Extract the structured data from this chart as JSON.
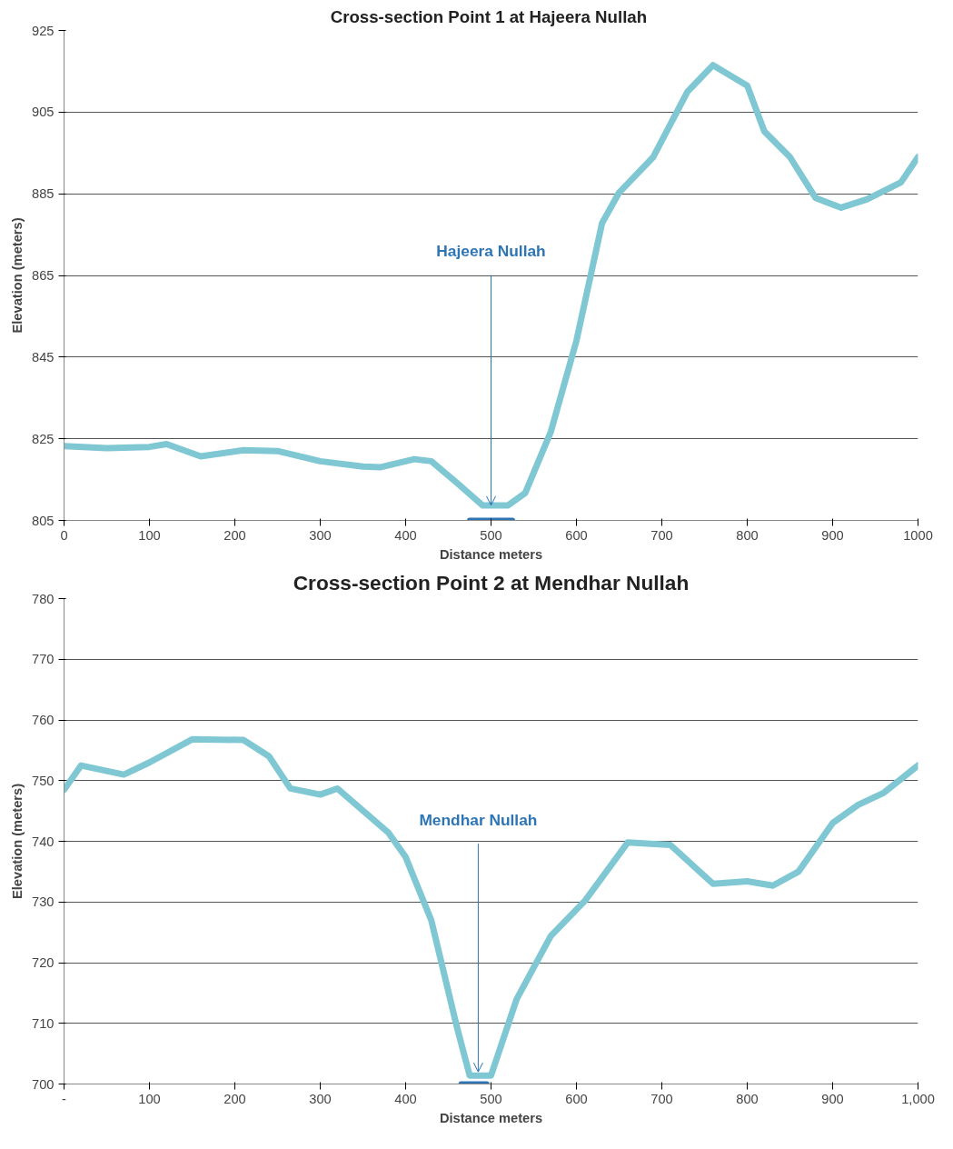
{
  "chart_data": [
    {
      "type": "line",
      "title": "Cross-section  Point 1 at Hajeera Nullah",
      "xlabel": "Distance meters",
      "ylabel": "Elevation (meters)",
      "xlim": [
        0,
        1000
      ],
      "ylim": [
        805,
        925
      ],
      "xticks": [
        0,
        100,
        200,
        300,
        400,
        500,
        600,
        700,
        800,
        900,
        1000
      ],
      "yticks": [
        805,
        825,
        845,
        865,
        885,
        905,
        925
      ],
      "grid": "y",
      "series": [
        {
          "color": "#7fc7d3",
          "x": [
            0,
            50,
            100,
            120,
            160,
            210,
            250,
            300,
            350,
            370,
            410,
            430,
            460,
            490,
            520,
            540,
            570,
            600,
            630,
            650,
            690,
            730,
            760,
            800,
            820,
            850,
            880,
            910,
            940,
            980,
            1000
          ],
          "values": [
            823.2,
            822.7,
            823,
            823.7,
            820.7,
            822.2,
            822,
            819.5,
            818.2,
            818,
            820,
            819.5,
            814.2,
            808.7,
            808.7,
            811.7,
            826.7,
            849,
            877.8,
            885.3,
            894,
            910,
            916.5,
            911.5,
            900.3,
            894,
            884,
            881.6,
            883.6,
            887.8,
            894
          ]
        },
        {
          "color": "#2e75b6",
          "x": [
            475,
            525
          ],
          "values": [
            805,
            805
          ]
        }
      ],
      "annotations": [
        {
          "text": "Hajeera Nullah",
          "x": 500,
          "y": 808.7
        }
      ]
    },
    {
      "type": "line",
      "title": "Cross-section Point 2 at Mendhar Nullah",
      "xlabel": "Distance meters",
      "ylabel": "Elevation (meters)",
      "xlim": [
        0,
        1000
      ],
      "ylim": [
        700,
        780
      ],
      "xticks": [
        {
          "value": 0,
          "label": "-"
        },
        100,
        200,
        300,
        400,
        500,
        600,
        700,
        800,
        900,
        {
          "value": 1000,
          "label": "1,000"
        }
      ],
      "yticks": [
        700,
        710,
        720,
        730,
        740,
        750,
        760,
        770,
        780
      ],
      "grid": "y",
      "series": [
        {
          "color": "#7fc7d3",
          "x": [
            0,
            20,
            70,
            100,
            150,
            210,
            240,
            265,
            300,
            320,
            380,
            400,
            430,
            460,
            475,
            500,
            530,
            570,
            610,
            660,
            710,
            760,
            800,
            830,
            860,
            900,
            930,
            960,
            1000
          ],
          "values": [
            748.5,
            752.5,
            751,
            753,
            756.8,
            756.7,
            754,
            748.7,
            747.7,
            748.7,
            741.4,
            737.4,
            727,
            709.4,
            701.4,
            701.4,
            714,
            724.4,
            730.2,
            739.8,
            739.4,
            733,
            733.4,
            732.7,
            735,
            743,
            746,
            748,
            752.5
          ]
        },
        {
          "color": "#2e75b6",
          "x": [
            465,
            495
          ],
          "values": [
            700,
            700
          ]
        }
      ],
      "annotations": [
        {
          "text": "Mendhar Nullah",
          "x": 485,
          "y": 702
        }
      ]
    }
  ]
}
